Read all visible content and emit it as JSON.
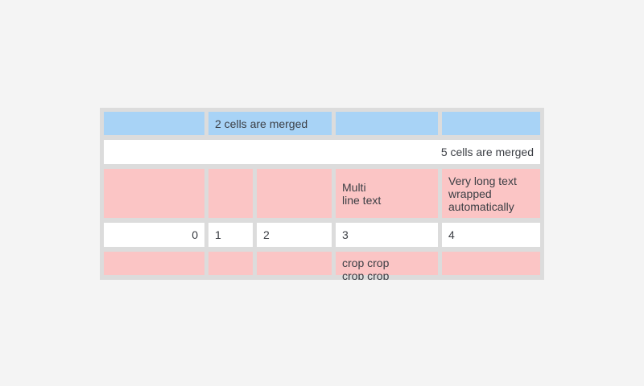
{
  "page": {
    "background": "#f4f4f4"
  },
  "table": {
    "colors": {
      "blue": "#a8d3f6",
      "pink": "#fbc5c5",
      "white": "#ffffff",
      "gap": "#dcdcdc",
      "text": "#3b3e44"
    },
    "rows": [
      {
        "cells": [
          {
            "text": "",
            "bg": "blue"
          },
          {
            "text": "2 cells are merged",
            "bg": "blue",
            "span": 2
          },
          {
            "text": "",
            "bg": "blue"
          },
          {
            "text": "",
            "bg": "blue"
          }
        ]
      },
      {
        "cells": [
          {
            "text": "5 cells are merged",
            "bg": "white",
            "span": 5,
            "align": "right"
          }
        ]
      },
      {
        "cells": [
          {
            "text": "",
            "bg": "pink"
          },
          {
            "text": "",
            "bg": "pink"
          },
          {
            "text": "",
            "bg": "pink"
          },
          {
            "text": "Multi\nline text",
            "bg": "pink"
          },
          {
            "text": "Very long text wrapped automatically",
            "bg": "pink"
          }
        ]
      },
      {
        "cells": [
          {
            "text": "0",
            "bg": "white",
            "align": "right"
          },
          {
            "text": "1",
            "bg": "white"
          },
          {
            "text": "2",
            "bg": "white"
          },
          {
            "text": "3",
            "bg": "white"
          },
          {
            "text": "4",
            "bg": "white"
          }
        ]
      },
      {
        "cells": [
          {
            "text": "",
            "bg": "pink"
          },
          {
            "text": "",
            "bg": "pink"
          },
          {
            "text": "",
            "bg": "pink"
          },
          {
            "text": "crop crop crop crop",
            "bg": "pink",
            "cropped": true
          },
          {
            "text": "",
            "bg": "pink"
          }
        ]
      }
    ]
  }
}
